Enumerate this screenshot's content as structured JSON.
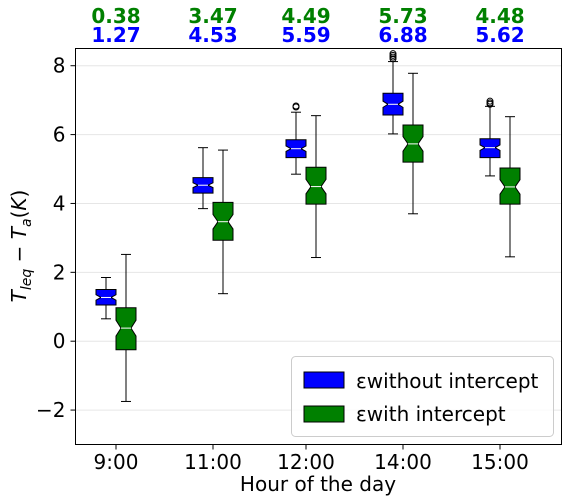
{
  "chart_data": {
    "type": "boxplot",
    "xlabel": "Hour of the day",
    "ylabel": "T_leq − T_a(K)",
    "ylim": [
      -3.0,
      8.5
    ],
    "yticks": [
      -2,
      0,
      2,
      4,
      6,
      8
    ],
    "ytick_labels": [
      "−2",
      "0",
      "2",
      "4",
      "6",
      "8"
    ],
    "grid": "horizontal",
    "legend_position": "lower-right",
    "categories": [
      "9:00",
      "11:00",
      "12:00",
      "14:00",
      "15:00"
    ],
    "series": [
      {
        "name": "εwithout intercept",
        "color": "#0000ff",
        "boxes": [
          {
            "whislo": 0.65,
            "q1": 1.05,
            "med": 1.27,
            "q3": 1.5,
            "whishi": 1.85,
            "notch_lo": 1.19,
            "notch_hi": 1.35,
            "fliers": []
          },
          {
            "whislo": 3.85,
            "q1": 4.3,
            "med": 4.53,
            "q3": 4.75,
            "whishi": 5.62,
            "notch_lo": 4.46,
            "notch_hi": 4.6,
            "fliers": []
          },
          {
            "whislo": 4.85,
            "q1": 5.33,
            "med": 5.59,
            "q3": 5.85,
            "whishi": 6.65,
            "notch_lo": 5.51,
            "notch_hi": 5.67,
            "fliers": [
              6.8,
              6.83
            ]
          },
          {
            "whislo": 6.02,
            "q1": 6.57,
            "med": 6.88,
            "q3": 7.2,
            "whishi": 8.12,
            "notch_lo": 6.79,
            "notch_hi": 6.97,
            "fliers": [
              8.2,
              8.25,
              8.3,
              8.35
            ]
          },
          {
            "whislo": 4.8,
            "q1": 5.33,
            "med": 5.62,
            "q3": 5.88,
            "whishi": 6.82,
            "notch_lo": 5.54,
            "notch_hi": 5.7,
            "fliers": [
              6.88,
              6.92,
              6.97
            ]
          }
        ]
      },
      {
        "name": "εwith intercept",
        "color": "#008000",
        "boxes": [
          {
            "whislo": -1.75,
            "q1": -0.25,
            "med": 0.38,
            "q3": 0.97,
            "whishi": 2.52,
            "notch_lo": 0.15,
            "notch_hi": 0.61,
            "fliers": []
          },
          {
            "whislo": 1.38,
            "q1": 2.93,
            "med": 3.47,
            "q3": 4.03,
            "whishi": 5.55,
            "notch_lo": 3.26,
            "notch_hi": 3.68,
            "fliers": []
          },
          {
            "whislo": 2.43,
            "q1": 3.98,
            "med": 4.49,
            "q3": 5.05,
            "whishi": 6.55,
            "notch_lo": 4.28,
            "notch_hi": 4.7,
            "fliers": []
          },
          {
            "whislo": 3.7,
            "q1": 5.2,
            "med": 5.73,
            "q3": 6.28,
            "whishi": 7.78,
            "notch_lo": 5.52,
            "notch_hi": 5.94,
            "fliers": []
          },
          {
            "whislo": 2.45,
            "q1": 3.98,
            "med": 4.48,
            "q3": 5.03,
            "whishi": 6.52,
            "notch_lo": 4.27,
            "notch_hi": 4.69,
            "fliers": []
          }
        ]
      }
    ],
    "top_labels": {
      "with_intercept": {
        "color": "#008000",
        "values": [
          "0.38",
          "3.47",
          "4.49",
          "5.73",
          "4.48"
        ]
      },
      "without_intercept": {
        "color": "#0000ff",
        "values": [
          "1.27",
          "4.53",
          "5.59",
          "6.88",
          "5.62"
        ]
      }
    }
  }
}
